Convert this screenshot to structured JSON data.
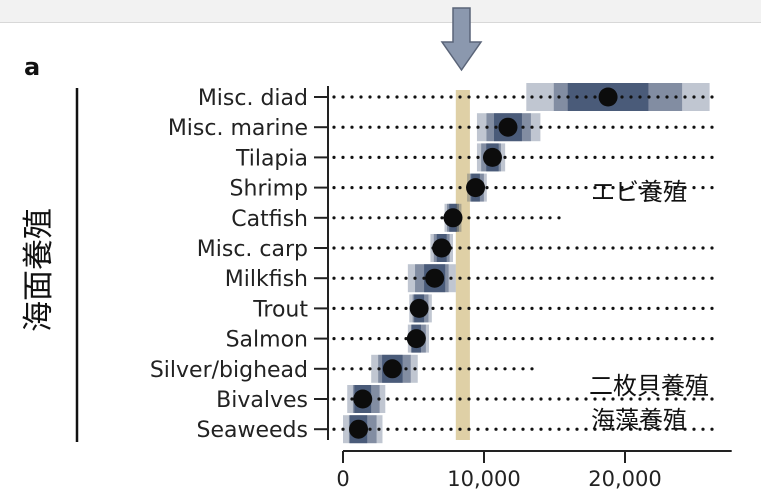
{
  "panel_letter": "a",
  "side_label": "海面養殖",
  "annotations": {
    "shrimp": "エビ養殖",
    "bivalves": "二枚貝養殖",
    "seaweeds": "海藻養殖"
  },
  "chart_data": {
    "type": "scatter",
    "orientation": "horizontal dot plot",
    "categories": [
      "Misc. diad",
      "Misc. marine",
      "Tilapia",
      "Shrimp",
      "Catfish",
      "Misc. carp",
      "Milkfish",
      "Trout",
      "Salmon",
      "Silver/bighead",
      "Bivalves",
      "Seaweeds"
    ],
    "values": [
      18800,
      11700,
      10600,
      9400,
      7800,
      7000,
      6500,
      5400,
      5200,
      3500,
      1400,
      1100
    ],
    "uncertainty_ranges": [
      [
        13000,
        26000
      ],
      [
        9500,
        14000
      ],
      [
        9500,
        11500
      ],
      [
        8800,
        10200
      ],
      [
        7200,
        8400
      ],
      [
        6200,
        7800
      ],
      [
        4600,
        8000
      ],
      [
        4700,
        6300
      ],
      [
        4600,
        6100
      ],
      [
        2000,
        5300
      ],
      [
        300,
        3000
      ],
      [
        0,
        2800
      ]
    ],
    "dotted_guide_extent": [
      26500,
      26500,
      26500,
      26500,
      15500,
      26500,
      26500,
      26500,
      26500,
      13500,
      26500,
      26500
    ],
    "reference_band": [
      8000,
      9000
    ],
    "reference_band_color": "#dccb9c",
    "uncertainty_color": "#1e3358",
    "point_color": "#0c0c0c",
    "xlim": [
      0,
      27000
    ],
    "xticks": [
      0,
      10000,
      20000
    ],
    "xtick_labels": [
      "0",
      "10,000",
      "20,000"
    ],
    "grid": false,
    "indicator_arrow_color": "#8190a8"
  }
}
